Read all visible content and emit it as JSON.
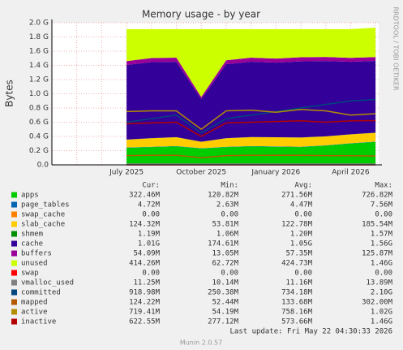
{
  "chart_data": {
    "type": "line",
    "title": "Memory usage - by year",
    "y_label": "Bytes",
    "side_label": "RRDTOOL / TOBI OETIKER",
    "categories": [
      null,
      null,
      null,
      "July 2025",
      null,
      null,
      "October 2025",
      null,
      null,
      "January 2026",
      null,
      null,
      "April 2026",
      null
    ],
    "ylim": [
      0,
      2.0
    ],
    "yticks": [
      {
        "value": 0,
        "label": "0.0"
      },
      {
        "value": 0.2,
        "label": "0.2 G"
      },
      {
        "value": 0.4,
        "label": "0.4 G"
      },
      {
        "value": 0.6,
        "label": "0.6 G"
      },
      {
        "value": 0.8,
        "label": "0.8 G"
      },
      {
        "value": 1.0,
        "label": "1.0 G"
      },
      {
        "value": 1.2,
        "label": "1.2 G"
      },
      {
        "value": 1.4,
        "label": "1.4 G"
      },
      {
        "value": 1.6,
        "label": "1.6 G"
      },
      {
        "value": 1.8,
        "label": "1.8 G"
      },
      {
        "value": 2.0,
        "label": "2.0 G"
      }
    ],
    "grid": true,
    "stats_header": [
      "Cur:",
      "Min:",
      "Avg:",
      "Max:"
    ],
    "series": [
      {
        "name": "apps",
        "color": "#00cc00",
        "style": "stack",
        "values": [
          null,
          null,
          null,
          0.24,
          0.25,
          0.26,
          0.23,
          0.25,
          0.26,
          0.255,
          0.25,
          0.27,
          0.3,
          0.32246
        ],
        "stats": [
          "322.46M",
          "120.82M",
          "271.56M",
          "726.82M"
        ]
      },
      {
        "name": "page_tables",
        "color": "#0066b3",
        "style": "stack",
        "values": [
          null,
          null,
          null,
          0.004,
          0.004,
          0.004,
          0.004,
          0.004,
          0.005,
          0.005,
          0.005,
          0.005,
          0.005,
          0.00472
        ],
        "stats": [
          "4.72M",
          "2.63M",
          "4.47M",
          "7.56M"
        ]
      },
      {
        "name": "swap_cache",
        "color": "#ff8000",
        "style": "stack",
        "values": [
          null,
          null,
          null,
          0,
          0,
          0,
          0,
          0,
          0,
          0,
          0,
          0,
          0,
          0
        ],
        "stats": [
          "0.00",
          "0.00",
          "0.00",
          "0.00"
        ]
      },
      {
        "name": "slab_cache",
        "color": "#ffcc00",
        "style": "stack",
        "values": [
          null,
          null,
          null,
          0.11,
          0.12,
          0.125,
          0.09,
          0.12,
          0.125,
          0.128,
          0.13,
          0.125,
          0.124,
          0.12432
        ],
        "stats": [
          "124.32M",
          "53.81M",
          "122.78M",
          "185.54M"
        ]
      },
      {
        "name": "shmem",
        "color": "#008f00",
        "style": "stack",
        "values": [
          null,
          null,
          null,
          0.0012,
          0.0012,
          0.0012,
          0.0011,
          0.0012,
          0.0012,
          0.0012,
          0.0012,
          0.0012,
          0.0012,
          0.00119
        ],
        "stats": [
          "1.19M",
          "1.06M",
          "1.20M",
          "1.57M"
        ]
      },
      {
        "name": "cache",
        "color": "#330099",
        "style": "stack",
        "values": [
          null,
          null,
          null,
          1.05,
          1.07,
          1.06,
          0.6,
          1.04,
          1.06,
          1.05,
          1.07,
          1.06,
          1.02,
          1.01
        ],
        "stats": [
          "1.01G",
          "174.61M",
          "1.05G",
          "1.56G"
        ]
      },
      {
        "name": "buffers",
        "color": "#990099",
        "style": "stack",
        "values": [
          null,
          null,
          null,
          0.055,
          0.057,
          0.058,
          0.03,
          0.056,
          0.058,
          0.057,
          0.058,
          0.057,
          0.055,
          0.05409
        ],
        "stats": [
          "54.09M",
          "13.05M",
          "57.35M",
          "125.87M"
        ]
      },
      {
        "name": "unused",
        "color": "#ccff00",
        "style": "stack",
        "values": [
          null,
          null,
          null,
          0.45,
          0.408,
          0.402,
          0.955,
          0.439,
          0.401,
          0.414,
          0.396,
          0.392,
          0.405,
          0.41426
        ],
        "stats": [
          "414.26M",
          "62.72M",
          "424.73M",
          "1.46G"
        ]
      },
      {
        "name": "swap",
        "color": "#ff0000",
        "style": "line",
        "values": [
          null,
          null,
          null,
          0,
          0,
          0,
          0,
          0,
          0,
          0,
          0,
          0,
          0,
          0
        ],
        "stats": [
          "0.00",
          "0.00",
          "0.00",
          "0.00"
        ]
      },
      {
        "name": "vmalloc_used",
        "color": "#808080",
        "style": "line",
        "values": [
          null,
          null,
          null,
          0.011,
          0.011,
          0.011,
          0.011,
          0.011,
          0.011,
          0.011,
          0.011,
          0.011,
          0.011,
          0.01125
        ],
        "stats": [
          "11.25M",
          "10.14M",
          "11.16M",
          "13.89M"
        ]
      },
      {
        "name": "committed",
        "color": "#00487d",
        "style": "line",
        "values": [
          null,
          null,
          null,
          0.6,
          0.65,
          0.7,
          0.45,
          0.65,
          0.7,
          0.75,
          0.8,
          0.85,
          0.9,
          0.91898
        ],
        "stats": [
          "918.98M",
          "250.38M",
          "734.18M",
          "2.10G"
        ]
      },
      {
        "name": "mapped",
        "color": "#b35a00",
        "style": "line",
        "values": [
          null,
          null,
          null,
          0.13,
          0.135,
          0.135,
          0.1,
          0.13,
          0.135,
          0.135,
          0.135,
          0.13,
          0.128,
          0.12422
        ],
        "stats": [
          "124.22M",
          "52.44M",
          "133.68M",
          "302.00M"
        ]
      },
      {
        "name": "active",
        "color": "#b38f00",
        "style": "line",
        "values": [
          null,
          null,
          null,
          0.75,
          0.76,
          0.76,
          0.5,
          0.76,
          0.77,
          0.74,
          0.78,
          0.76,
          0.7,
          0.71941
        ],
        "stats": [
          "719.41M",
          "54.19M",
          "758.16M",
          "1.02G"
        ]
      },
      {
        "name": "inactive",
        "color": "#b30000",
        "style": "line",
        "values": [
          null,
          null,
          null,
          0.58,
          0.59,
          0.6,
          0.4,
          0.59,
          0.6,
          0.61,
          0.62,
          0.6,
          0.62,
          0.62255
        ],
        "stats": [
          "622.55M",
          "277.12M",
          "573.66M",
          "1.46G"
        ]
      }
    ],
    "last_update": "Last update: Fri May 22 04:30:33 2026",
    "footer": "Munin 2.0.57"
  }
}
